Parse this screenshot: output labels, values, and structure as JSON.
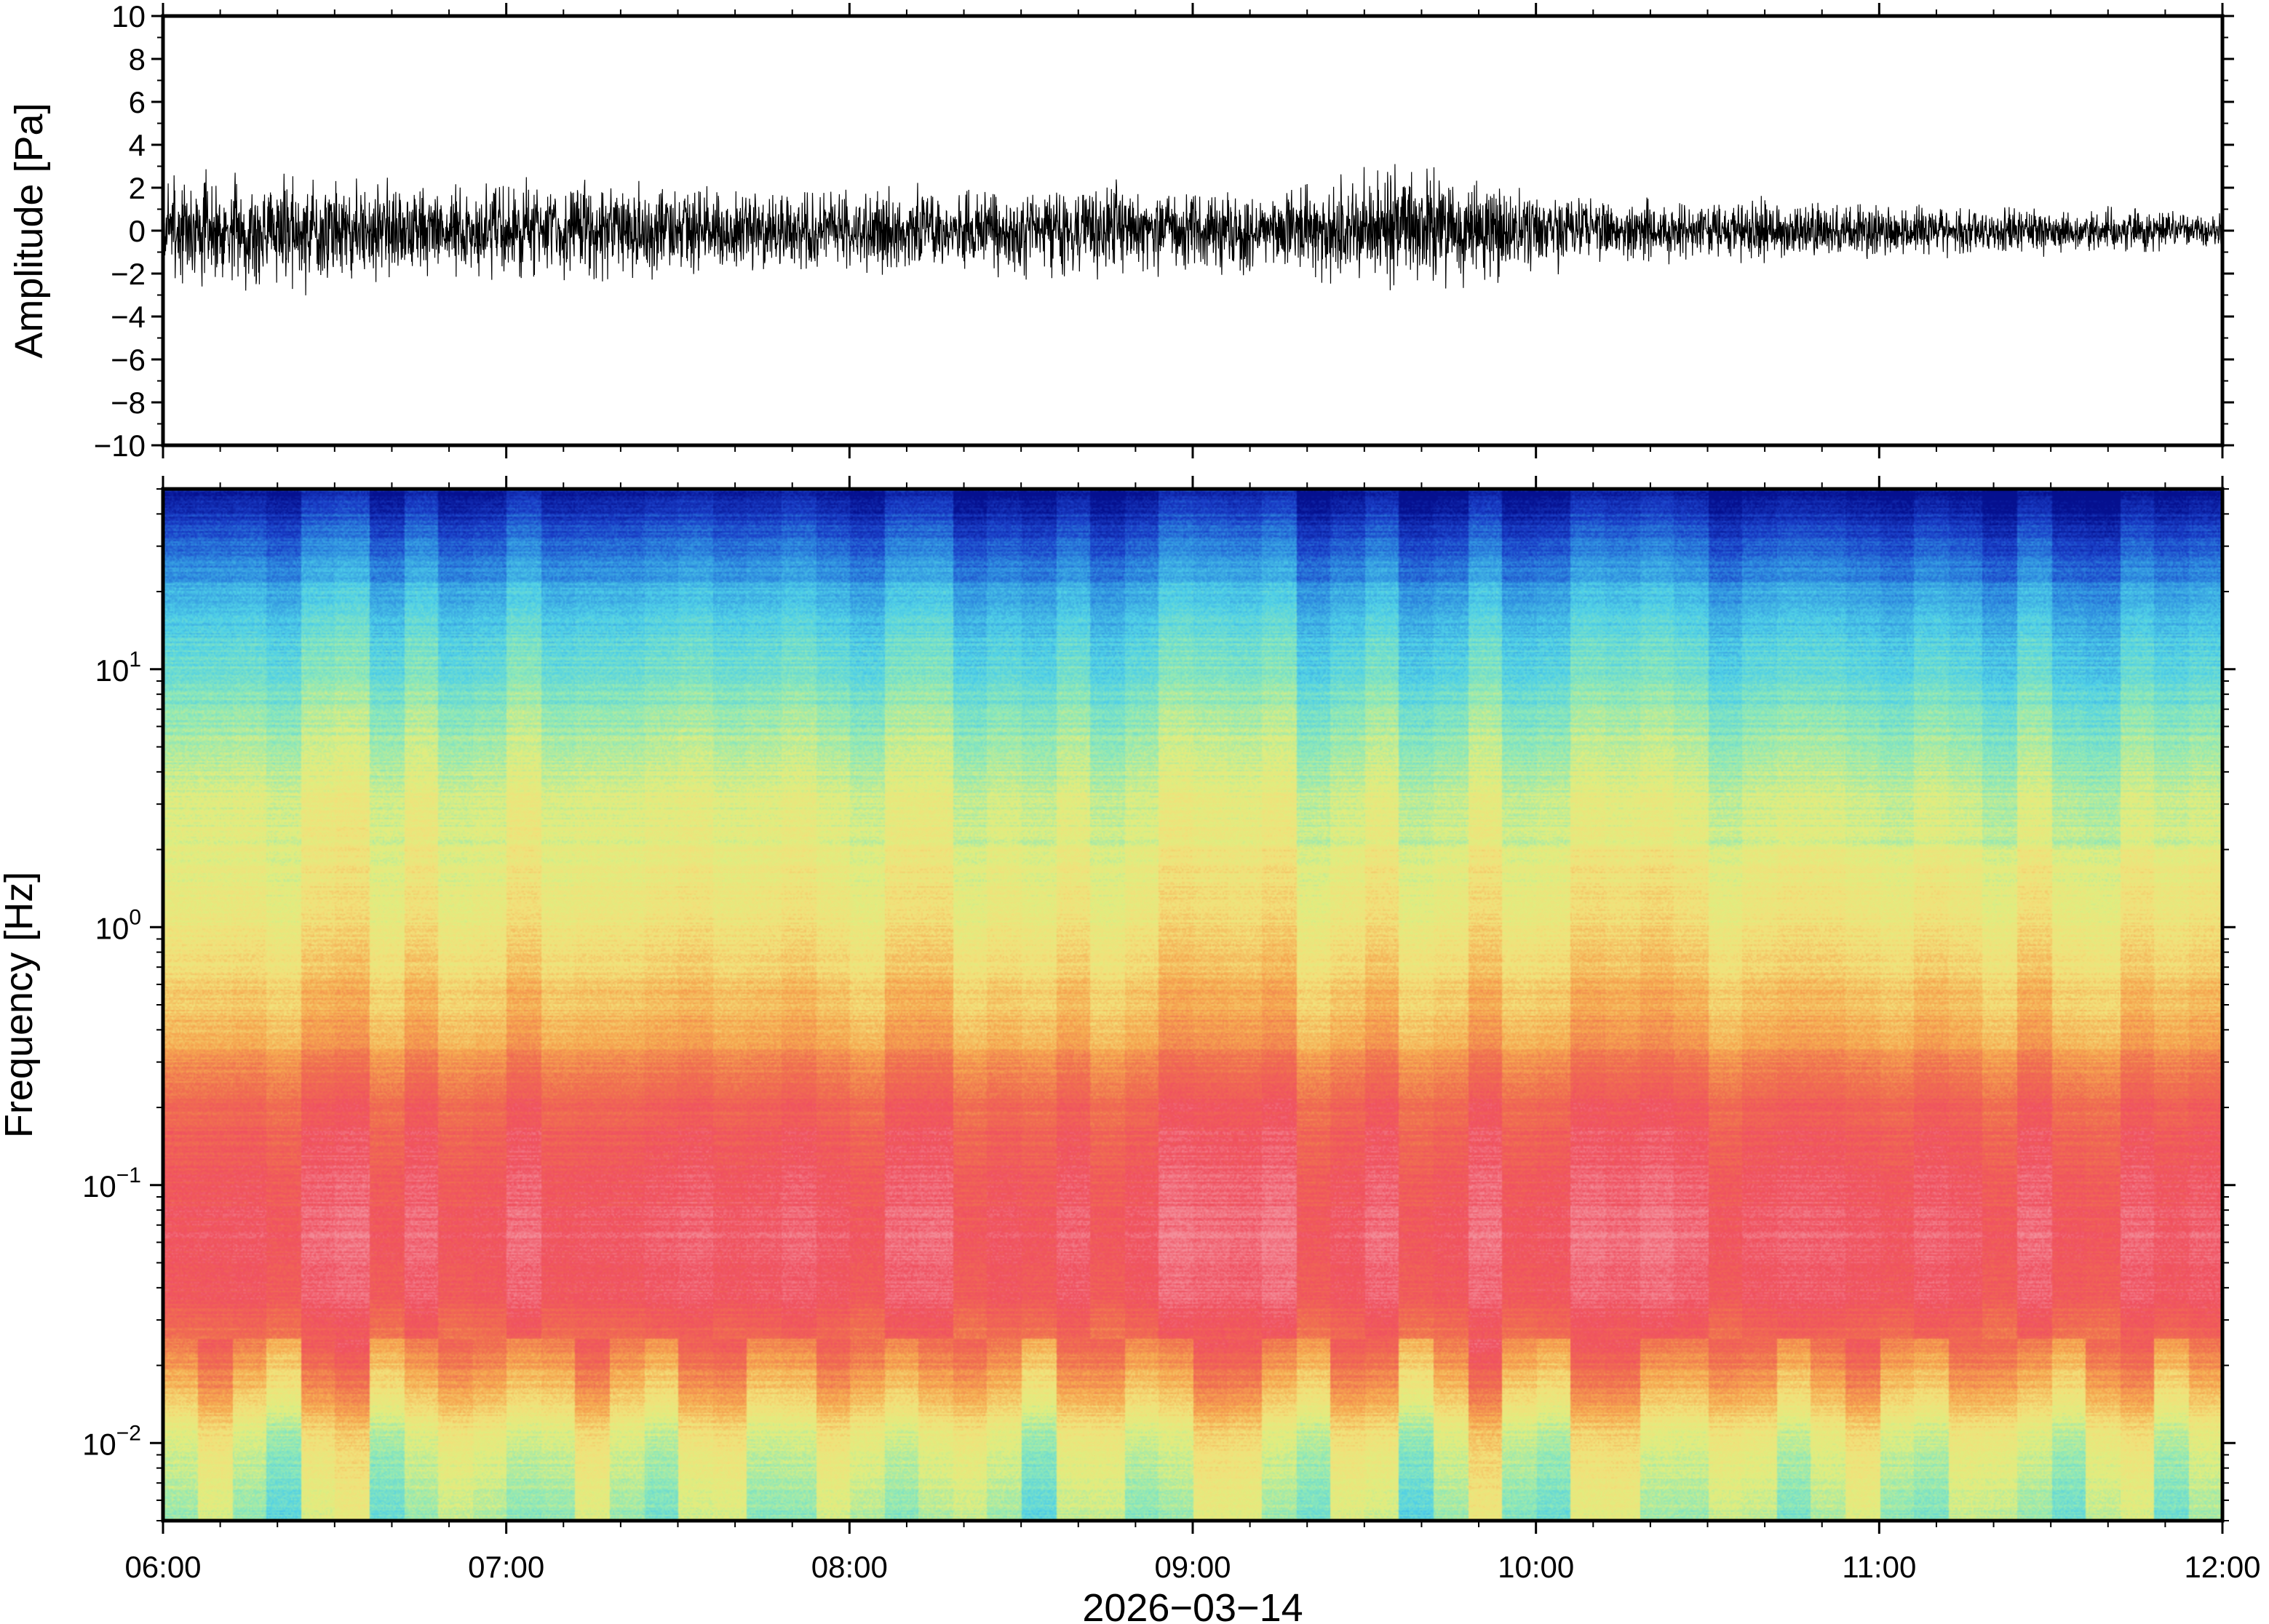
{
  "chart_data": [
    {
      "type": "line",
      "panel": "waveform",
      "ylabel": "Amplitude [Pa]",
      "ylim": [
        -10,
        10
      ],
      "yticks": [
        -10,
        -8,
        -6,
        -4,
        -2,
        0,
        2,
        4,
        6,
        8,
        10
      ],
      "ytick_labels": [
        "−10",
        "−8",
        "−6",
        "−4",
        "−2",
        "0",
        "2",
        "4",
        "6",
        "8",
        "10"
      ],
      "xlim": [
        "06:00",
        "12:00"
      ],
      "series": [
        {
          "color": "#000000",
          "envelope_hours": [
            6.0,
            6.25,
            6.5,
            6.75,
            7.0,
            7.25,
            7.5,
            7.75,
            8.0,
            8.25,
            8.5,
            8.75,
            9.0,
            9.25,
            9.5,
            9.75,
            10.0,
            10.25,
            10.5,
            10.75,
            11.0,
            11.25,
            11.5,
            11.75,
            12.0
          ],
          "envelope_pa": [
            1.2,
            1.3,
            1.3,
            1.1,
            1.2,
            1.1,
            1.0,
            0.9,
            1.0,
            1.0,
            1.0,
            1.1,
            1.0,
            0.9,
            1.4,
            1.3,
            0.9,
            0.8,
            0.7,
            0.7,
            0.6,
            0.6,
            0.5,
            0.5,
            0.4
          ],
          "peak_pa": [
            2.3,
            2.5,
            2.4,
            2.2,
            2.3,
            2.0,
            1.8,
            1.7,
            1.9,
            1.9,
            1.8,
            2.6,
            1.9,
            1.7,
            2.6,
            2.3,
            1.6,
            1.5,
            1.4,
            1.3,
            1.3,
            1.3,
            1.2,
            1.1,
            0.9
          ]
        }
      ]
    },
    {
      "type": "heatmap",
      "panel": "spectrogram",
      "ylabel": "Frequency [Hz]",
      "xlabel": "2026−03−14",
      "yscale": "log",
      "ylim_hz": [
        0.005,
        50
      ],
      "yticks_hz": [
        0.01,
        0.1,
        1,
        10
      ],
      "ytick_labels": [
        {
          "base": "10",
          "exp": "−2"
        },
        {
          "base": "10",
          "exp": "−1"
        },
        {
          "base": "10",
          "exp": "0"
        },
        {
          "base": "10",
          "exp": "1"
        }
      ],
      "xticks": [
        "06:00",
        "07:00",
        "08:00",
        "09:00",
        "10:00",
        "11:00",
        "12:00"
      ],
      "colormap": [
        "#05108f",
        "#1a3fc8",
        "#2f8fe0",
        "#4fd0e8",
        "#8ee8b8",
        "#dfee80",
        "#f3e07a",
        "#f6a850",
        "#f07050",
        "#f05060",
        "#f4909c"
      ],
      "relative_level_by_log10_freq": {
        "log10_freq": [
          -2.3,
          -2.0,
          -1.7,
          -1.45,
          -1.2,
          -1.0,
          -0.7,
          -0.4,
          0.0,
          0.5,
          1.0,
          1.3,
          1.7
        ],
        "level": [
          0.44,
          0.52,
          0.75,
          0.9,
          0.92,
          0.9,
          0.85,
          0.7,
          0.58,
          0.52,
          0.38,
          0.28,
          0.05
        ]
      }
    }
  ]
}
